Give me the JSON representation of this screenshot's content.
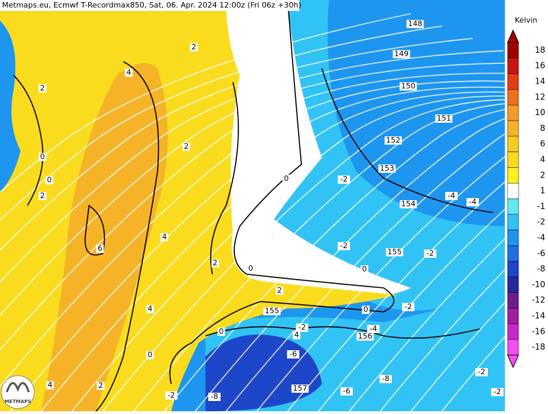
{
  "header": {
    "title": "Metmaps.eu, Ecmwf T-Recordmax850, Sat, 06. Apr. 2024 12:00z (Fri 06z +30h)"
  },
  "legend": {
    "unit": "Kelvin",
    "items": [
      {
        "label": 18,
        "color": "#a00000"
      },
      {
        "label": 16,
        "color": "#c81414"
      },
      {
        "label": 14,
        "color": "#e63c14"
      },
      {
        "label": 12,
        "color": "#f06e1e"
      },
      {
        "label": 10,
        "color": "#f59b28"
      },
      {
        "label": 8,
        "color": "#f5b428"
      },
      {
        "label": 6,
        "color": "#f5cd1e"
      },
      {
        "label": 4,
        "color": "#fadc1e"
      },
      {
        "label": 2,
        "color": "#fff01e"
      },
      {
        "label": 1,
        "color": "#ffffff"
      },
      {
        "label": -1,
        "color": "#64e6f5"
      },
      {
        "label": -2,
        "color": "#32c3f5"
      },
      {
        "label": -4,
        "color": "#1e96f0"
      },
      {
        "label": -6,
        "color": "#1e6ee6"
      },
      {
        "label": -8,
        "color": "#1e46c8"
      },
      {
        "label": -10,
        "color": "#2828a0"
      },
      {
        "label": -12,
        "color": "#6e1e8c"
      },
      {
        "label": -14,
        "color": "#a01ea0"
      },
      {
        "label": -16,
        "color": "#c828c8"
      },
      {
        "label": -18,
        "color": "#f050f0"
      }
    ]
  },
  "map": {
    "labels": [
      148,
      149,
      150,
      151,
      152,
      153,
      154,
      155,
      155,
      156,
      157,
      2,
      4,
      2,
      2,
      0,
      0,
      2,
      0,
      -2,
      -4,
      -4,
      -2,
      -2,
      6,
      4,
      2,
      0,
      0,
      2,
      0,
      -2,
      4,
      -2,
      -4,
      4,
      0,
      0,
      -6,
      -8,
      -2,
      2,
      4,
      -2,
      -8,
      -6,
      -2
    ]
  },
  "logo": "METMAPS"
}
